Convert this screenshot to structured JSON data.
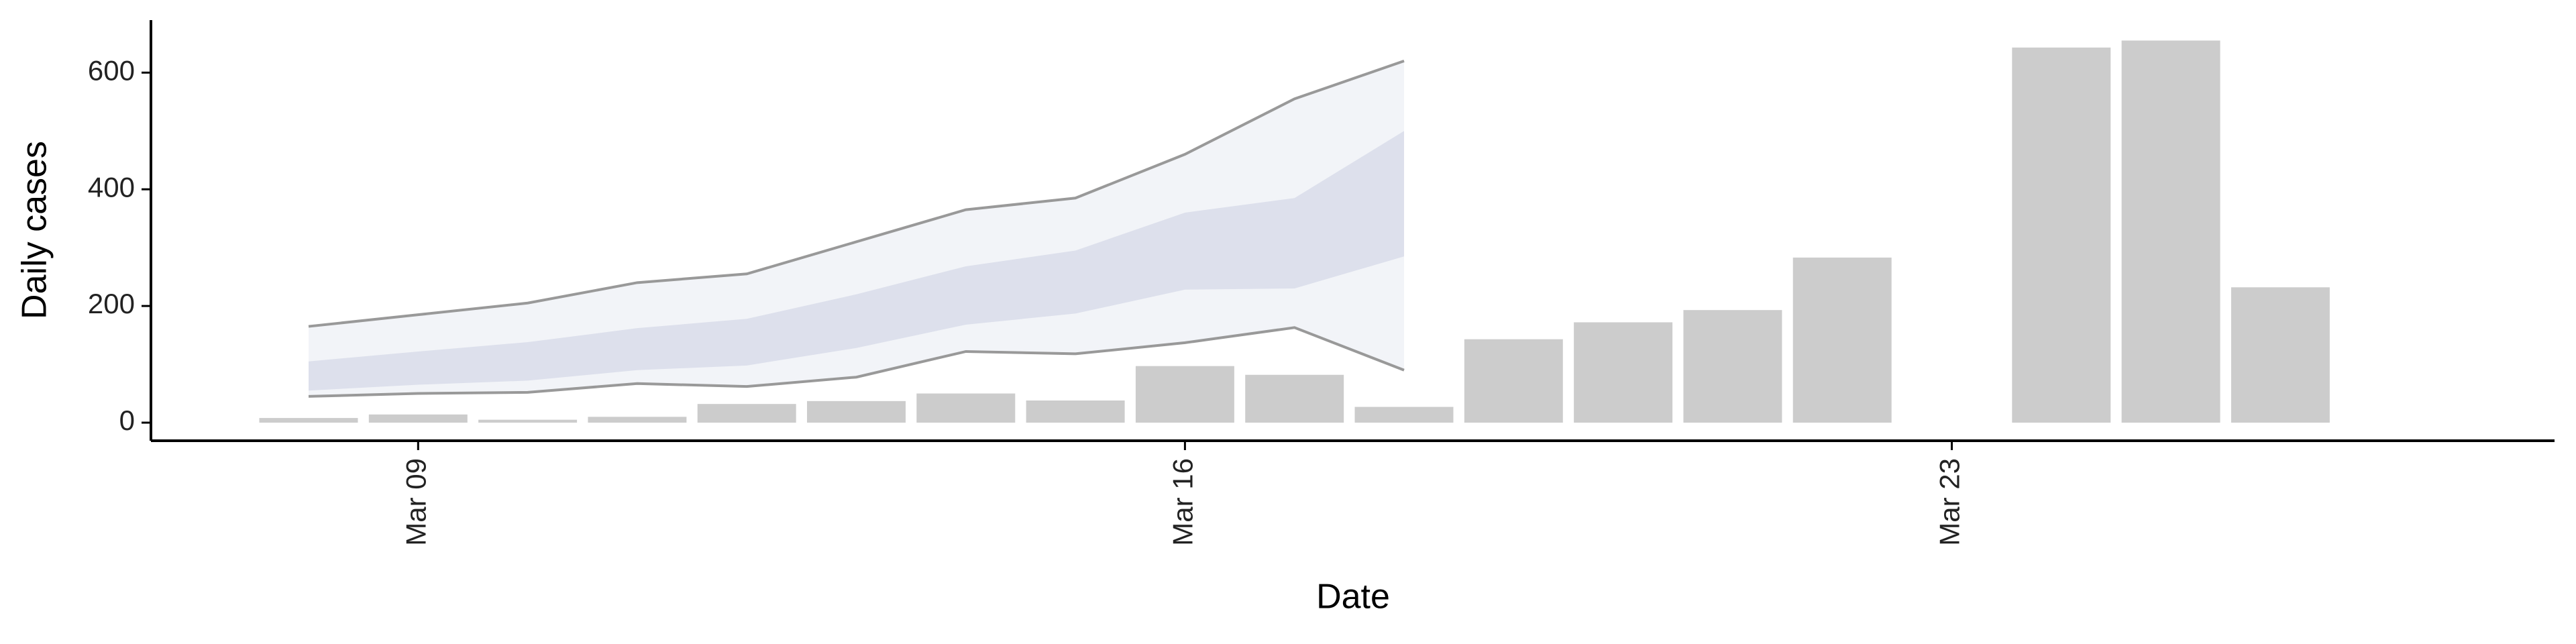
{
  "chart_data": {
    "type": "bar",
    "x_label": "Date",
    "y_label": "Daily cases",
    "x": [
      "Mar 08",
      "Mar 09",
      "Mar 10",
      "Mar 11",
      "Mar 12",
      "Mar 13",
      "Mar 14",
      "Mar 15",
      "Mar 16",
      "Mar 17",
      "Mar 18",
      "Mar 19",
      "Mar 20",
      "Mar 21",
      "Mar 22",
      "Mar 23",
      "Mar 24",
      "Mar 25",
      "Mar 26"
    ],
    "values": [
      8,
      14,
      5,
      10,
      32,
      37,
      50,
      38,
      97,
      82,
      27,
      143,
      172,
      193,
      283,
      null,
      643,
      655,
      232
    ],
    "color": "#cccccc",
    "xticks": [
      "Mar 09",
      "Mar 16",
      "Mar 23"
    ],
    "ylim": [
      -31,
      690
    ],
    "yticks": [
      0,
      200,
      400,
      600
    ],
    "band_x": [
      "Mar 08",
      "Mar 09",
      "Mar 10",
      "Mar 11",
      "Mar 12",
      "Mar 13",
      "Mar 14",
      "Mar 15",
      "Mar 16",
      "Mar 17",
      "Mar 18"
    ],
    "bands": [
      {
        "color": "#eef0f6",
        "line_color": "#999999",
        "upper": [
          165,
          185,
          205,
          240,
          255,
          310,
          365,
          385,
          460,
          555,
          620
        ],
        "lower": [
          45,
          50,
          52,
          67,
          62,
          78,
          122,
          118,
          137,
          163,
          90
        ]
      },
      {
        "color": "#d5d9e8",
        "upper": [
          105,
          122,
          138,
          162,
          178,
          220,
          268,
          295,
          360,
          385,
          500
        ],
        "lower": [
          55,
          65,
          72,
          90,
          98,
          128,
          168,
          187,
          228,
          230,
          285
        ]
      }
    ]
  }
}
